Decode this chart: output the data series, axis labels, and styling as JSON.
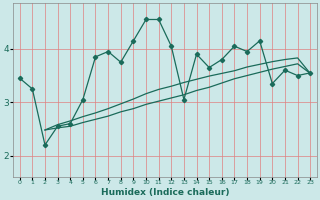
{
  "xlabel": "Humidex (Indice chaleur)",
  "background_color": "#cce8e8",
  "grid_color": "#e08080",
  "line_color": "#1a6b5a",
  "xlim": [
    -0.5,
    23.5
  ],
  "ylim": [
    1.6,
    4.85
  ],
  "yticks": [
    2,
    3,
    4
  ],
  "xticks": [
    0,
    1,
    2,
    3,
    4,
    5,
    6,
    7,
    8,
    9,
    10,
    11,
    12,
    13,
    14,
    15,
    16,
    17,
    18,
    19,
    20,
    21,
    22,
    23
  ],
  "series1_x": [
    0,
    1,
    2,
    3,
    4,
    5,
    6,
    7,
    8,
    9,
    10,
    11,
    12,
    13,
    14,
    15,
    16,
    17,
    18,
    19,
    20,
    21,
    22,
    23
  ],
  "series1_y": [
    3.45,
    3.25,
    2.2,
    2.55,
    2.6,
    3.05,
    3.85,
    3.95,
    3.75,
    4.15,
    4.55,
    4.55,
    4.05,
    3.05,
    3.9,
    3.65,
    3.8,
    4.05,
    3.95,
    4.15,
    3.35,
    3.6,
    3.5,
    3.55
  ],
  "series2_x": [
    2,
    3,
    4,
    5,
    6,
    7,
    8,
    9,
    10,
    11,
    12,
    13,
    14,
    15,
    16,
    17,
    18,
    19,
    20,
    21,
    22,
    23
  ],
  "series2_y": [
    2.48,
    2.52,
    2.55,
    2.62,
    2.68,
    2.74,
    2.82,
    2.88,
    2.96,
    3.02,
    3.08,
    3.14,
    3.22,
    3.28,
    3.36,
    3.44,
    3.5,
    3.56,
    3.62,
    3.67,
    3.72,
    3.54
  ],
  "series3_x": [
    2,
    3,
    4,
    5,
    6,
    7,
    8,
    9,
    10,
    11,
    12,
    13,
    14,
    15,
    16,
    17,
    18,
    19,
    20,
    21,
    22,
    23
  ],
  "series3_y": [
    2.48,
    2.58,
    2.65,
    2.73,
    2.8,
    2.88,
    2.97,
    3.06,
    3.16,
    3.24,
    3.3,
    3.37,
    3.43,
    3.49,
    3.54,
    3.59,
    3.66,
    3.71,
    3.76,
    3.8,
    3.83,
    3.54
  ]
}
